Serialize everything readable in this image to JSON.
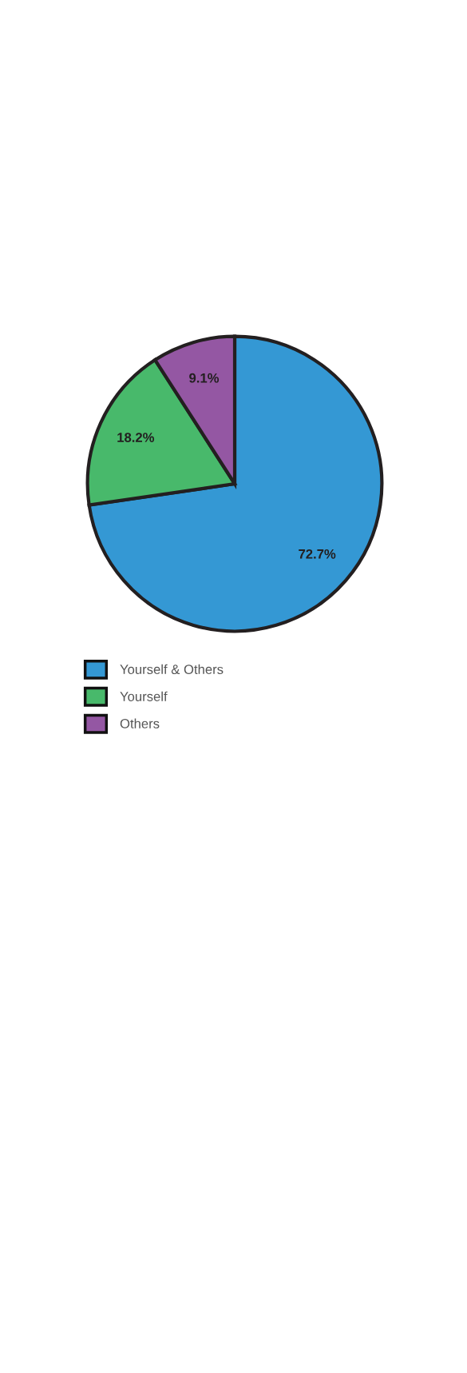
{
  "chart_data": {
    "type": "pie",
    "categories": [
      "Yourself & Others",
      "Yourself",
      "Others"
    ],
    "values": [
      72.7,
      18.2,
      9.1
    ],
    "colors": [
      "#3498d4",
      "#48b96b",
      "#9457a3"
    ],
    "value_labels": [
      "72.7%",
      "18.2%",
      "9.1%"
    ],
    "legend": "bottom"
  }
}
